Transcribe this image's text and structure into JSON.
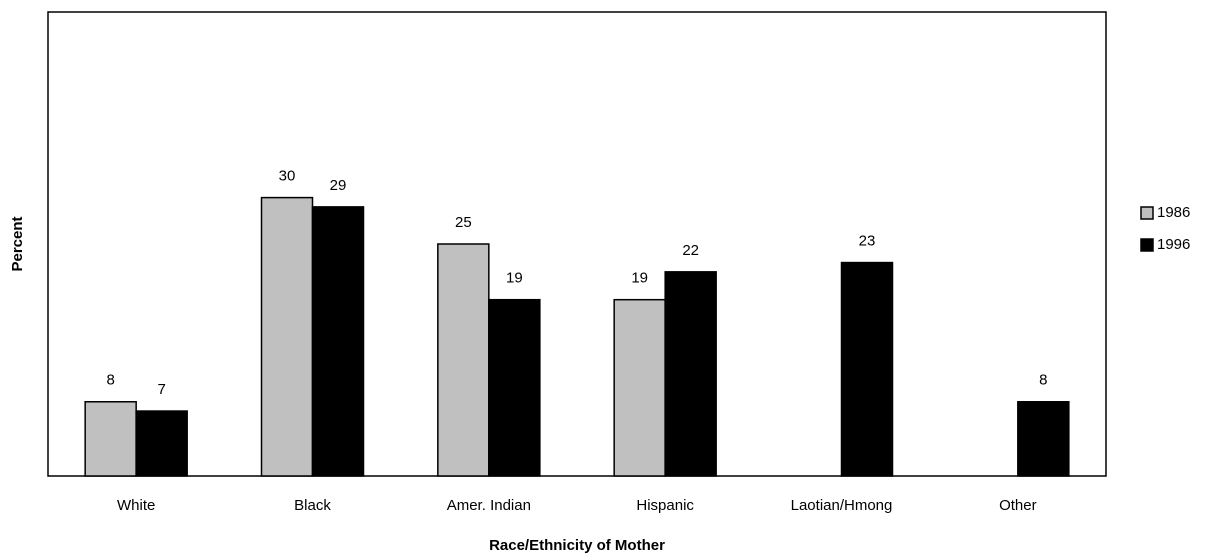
{
  "chart_data": {
    "type": "bar",
    "x_label": "Race/Ethnicity of Mother",
    "y_label": "Percent",
    "categories": [
      "White",
      "Black",
      "Amer. Indian",
      "Hispanic",
      "Laotian/Hmong",
      "Other"
    ],
    "series": [
      {
        "name": "1986",
        "color": "#c0c0c0",
        "values": [
          8,
          30,
          25,
          19,
          null,
          null
        ]
      },
      {
        "name": "1996",
        "color": "#000000",
        "values": [
          7,
          29,
          19,
          22,
          23,
          8
        ]
      }
    ],
    "ylim": [
      0,
      50
    ],
    "legend": "right"
  }
}
